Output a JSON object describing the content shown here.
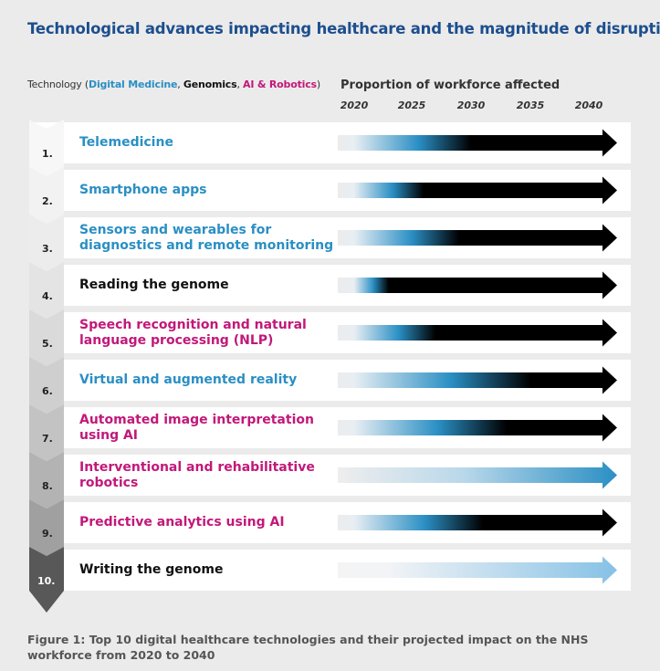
{
  "title": "Technological advances impacting healthcare and the magnitude of disruption.",
  "legend": {
    "prefix": "Technology (",
    "digital_medicine": "Digital Medicine",
    "sep1": ", ",
    "genomics": "Genomics",
    "sep2": ", ",
    "ai_robotics": "AI & Robotics",
    "suffix": ")"
  },
  "colors": {
    "digital_medicine": "#2a8fc4",
    "genomics": "#111111",
    "ai_robotics": "#c2187a",
    "title": "#1c4f8e"
  },
  "caption": "Figure 1: Top 10 digital healthcare technologies and their projected impact on the NHS workforce from 2020 to 2040",
  "chart_data": {
    "type": "bar",
    "ylabel": "Technology",
    "xlabel": "Proportion of workforce affected",
    "x_ticks": [
      "2020",
      "2025",
      "2030",
      "2035",
      "2040"
    ],
    "categories": [
      {
        "rank": "1.",
        "label": "Telemedicine",
        "group": "digital_medicine",
        "ramp": [
          2020,
          2030
        ],
        "end_shade": "black"
      },
      {
        "rank": "2.",
        "label": "Smartphone apps",
        "group": "digital_medicine",
        "ramp": [
          2020,
          2026
        ],
        "end_shade": "black"
      },
      {
        "rank": "3.",
        "label": "Sensors and wearables for diagnostics and remote monitoring",
        "group": "digital_medicine",
        "ramp": [
          2020,
          2029
        ],
        "end_shade": "black"
      },
      {
        "rank": "4.",
        "label": "Reading the genome",
        "group": "genomics",
        "ramp": [
          2020,
          2023
        ],
        "end_shade": "black"
      },
      {
        "rank": "5.",
        "label": "Speech recognition and natural language processing (NLP)",
        "group": "ai_robotics",
        "ramp": [
          2020,
          2027
        ],
        "end_shade": "black"
      },
      {
        "rank": "6.",
        "label": "Virtual and augmented reality",
        "group": "digital_medicine",
        "ramp": [
          2020,
          2035
        ],
        "end_shade": "black"
      },
      {
        "rank": "7.",
        "label": "Automated image interpretation using AI",
        "group": "ai_robotics",
        "ramp": [
          2020,
          2033
        ],
        "end_shade": "black"
      },
      {
        "rank": "8.",
        "label": "Interventional and rehabilitative robotics",
        "group": "ai_robotics",
        "ramp": [
          2020,
          2040
        ],
        "end_shade": "blue"
      },
      {
        "rank": "9.",
        "label": "Predictive analytics using AI",
        "group": "ai_robotics",
        "ramp": [
          2020,
          2031
        ],
        "end_shade": "black"
      },
      {
        "rank": "10.",
        "label": "Writing the genome",
        "group": "genomics",
        "ramp": [
          2023,
          2040
        ],
        "end_shade": "lightblue"
      }
    ]
  }
}
